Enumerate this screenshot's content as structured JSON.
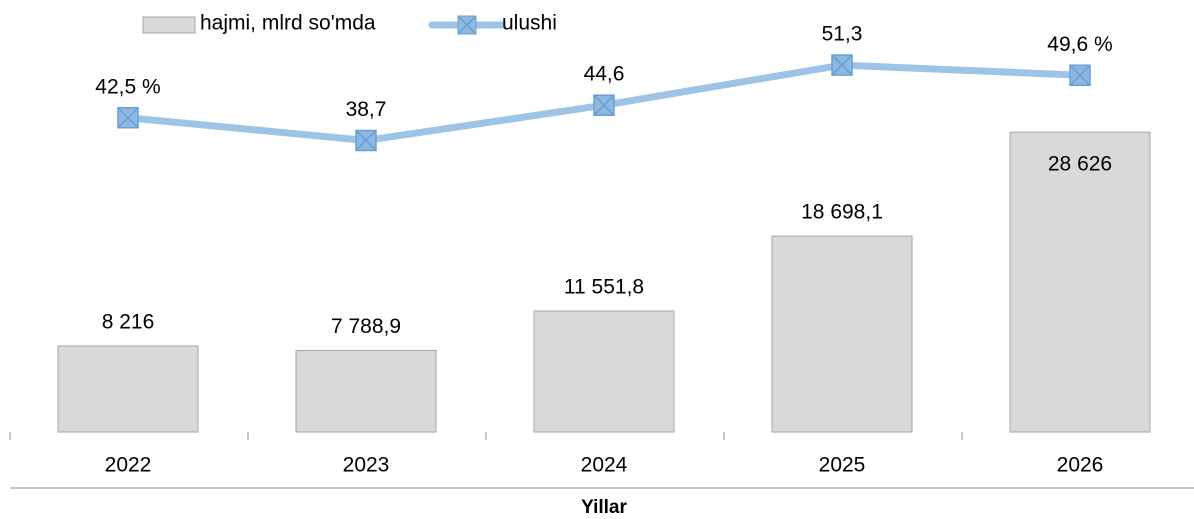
{
  "chart_data": {
    "type": "bar",
    "x_label": "Yillar",
    "categories": [
      "2022",
      "2023",
      "2024",
      "2025",
      "2026"
    ],
    "series": [
      {
        "name": "hajmi, mlrd so'mda",
        "type": "bar",
        "color": "#d9d9d9",
        "values": [
          8216,
          7788.9,
          11551.8,
          18698.1,
          28626
        ],
        "value_labels": [
          "8 216",
          "7 788,9",
          "11 551,8",
          "18 698,1",
          "28 626"
        ]
      },
      {
        "name": "ulushi",
        "type": "line",
        "axis": "y2",
        "color": "#9dc3e6",
        "values": [
          42.5,
          38.7,
          44.6,
          51.3,
          49.6
        ],
        "value_labels": [
          "42,5 %",
          "38,7",
          "44,6",
          "51,3",
          "49,6 %"
        ]
      }
    ],
    "ylim": [
      0,
      40000
    ],
    "y2lim": [
      -10,
      60
    ]
  }
}
